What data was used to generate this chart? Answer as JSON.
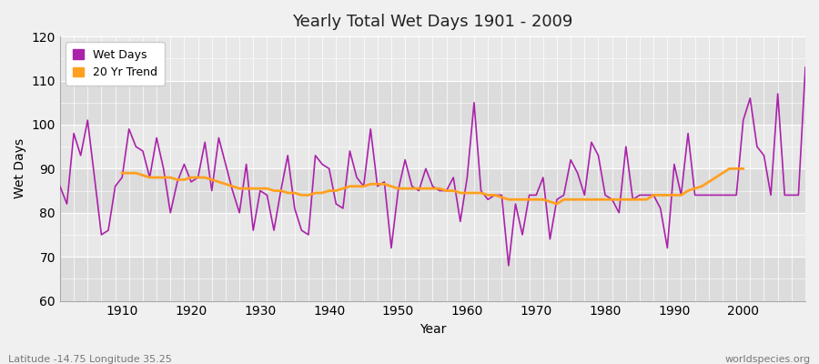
{
  "title": "Yearly Total Wet Days 1901 - 2009",
  "xlabel": "Year",
  "ylabel": "Wet Days",
  "subtitle": "Latitude -14.75 Longitude 35.25",
  "watermark": "worldspecies.org",
  "ylim": [
    60,
    120
  ],
  "yticks": [
    60,
    70,
    80,
    90,
    100,
    110,
    120
  ],
  "wet_days_color": "#aa22aa",
  "trend_color": "#ffa020",
  "bg_color": "#f0f0f0",
  "plot_bg_color": "#e8e8e8",
  "band_color_dark": "#dcdcdc",
  "band_color_light": "#e8e8e8",
  "years": [
    1901,
    1902,
    1903,
    1904,
    1905,
    1906,
    1907,
    1908,
    1909,
    1910,
    1911,
    1912,
    1913,
    1914,
    1915,
    1916,
    1917,
    1918,
    1919,
    1920,
    1921,
    1922,
    1923,
    1924,
    1925,
    1926,
    1927,
    1928,
    1929,
    1930,
    1931,
    1932,
    1933,
    1934,
    1935,
    1936,
    1937,
    1938,
    1939,
    1940,
    1941,
    1942,
    1943,
    1944,
    1945,
    1946,
    1947,
    1948,
    1949,
    1950,
    1951,
    1952,
    1953,
    1954,
    1955,
    1956,
    1957,
    1958,
    1959,
    1960,
    1961,
    1962,
    1963,
    1964,
    1965,
    1966,
    1967,
    1968,
    1969,
    1970,
    1971,
    1972,
    1973,
    1974,
    1975,
    1976,
    1977,
    1978,
    1979,
    1980,
    1981,
    1982,
    1983,
    1984,
    1985,
    1986,
    1987,
    1988,
    1989,
    1990,
    1991,
    1992,
    1993,
    1994,
    1995,
    1996,
    1997,
    1998,
    1999,
    2000,
    2001,
    2002,
    2003,
    2004,
    2005,
    2006,
    2007,
    2008,
    2009
  ],
  "wet_days": [
    86,
    82,
    98,
    93,
    101,
    88,
    75,
    76,
    86,
    88,
    99,
    95,
    94,
    88,
    97,
    90,
    80,
    87,
    91,
    87,
    88,
    96,
    85,
    97,
    91,
    85,
    80,
    91,
    76,
    85,
    84,
    76,
    85,
    93,
    81,
    76,
    75,
    93,
    91,
    90,
    82,
    81,
    94,
    88,
    86,
    99,
    86,
    87,
    72,
    85,
    92,
    86,
    85,
    90,
    86,
    85,
    85,
    88,
    78,
    88,
    105,
    85,
    83,
    84,
    84,
    68,
    82,
    75,
    84,
    84,
    88,
    74,
    83,
    84,
    92,
    89,
    84,
    96,
    93,
    84,
    83,
    80,
    95,
    83,
    84,
    84,
    84,
    81,
    72,
    91,
    84,
    98,
    84,
    84,
    84,
    84,
    84,
    84,
    84,
    101,
    106,
    95,
    93,
    84,
    107,
    84,
    84,
    84,
    113
  ],
  "trend": [
    null,
    null,
    null,
    null,
    null,
    null,
    null,
    null,
    null,
    89,
    89,
    89,
    88.5,
    88,
    88,
    88,
    88,
    87.5,
    87.5,
    88,
    88,
    88,
    87.5,
    87,
    86.5,
    86,
    85.5,
    85.5,
    85.5,
    85.5,
    85.5,
    85,
    85,
    84.5,
    84.5,
    84,
    84,
    84.5,
    84.5,
    85,
    85,
    85.5,
    86,
    86,
    86,
    86.5,
    86.5,
    86.5,
    86,
    85.5,
    85.5,
    85.5,
    85.5,
    85.5,
    85.5,
    85.5,
    85,
    85,
    84.5,
    84.5,
    84.5,
    84.5,
    84,
    84,
    83.5,
    83,
    83,
    83,
    83,
    83,
    83,
    82.5,
    82,
    83,
    83,
    83,
    83,
    83,
    83,
    83,
    83,
    83,
    83,
    83,
    83,
    83,
    84,
    84,
    84,
    84,
    84,
    85,
    85.5,
    86,
    87,
    88,
    89,
    90,
    90,
    90,
    null,
    null,
    null,
    null,
    null,
    null,
    null,
    null,
    null
  ]
}
